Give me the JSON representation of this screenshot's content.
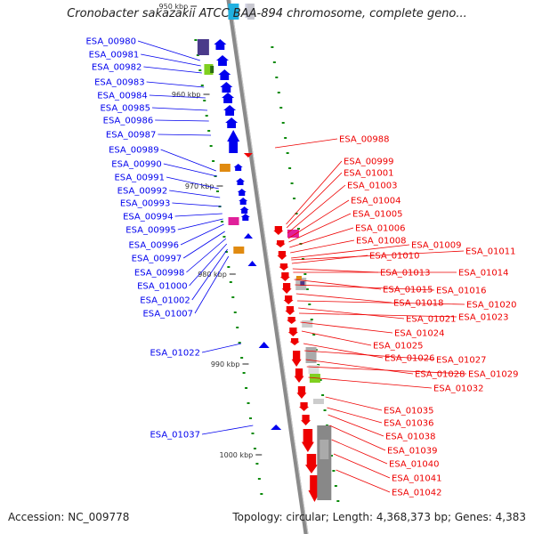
{
  "title": "Cronobacter sakazakii ATCC BAA-894 chromosome, complete geno...",
  "accession": "Accession: NC_009778",
  "summary": "Topology: circular; Length: 4,368,373 bp; Genes: 4,383",
  "colors": {
    "forward": "#0000ee",
    "reverse": "#ee0000",
    "backbone": "#8a8a8a",
    "tick": "#0a8a0a",
    "other_gray": "#777777",
    "magenta": "#e0209a",
    "orange": "#e08a10",
    "lime": "#80d020",
    "purple": "#4a3a8a",
    "cyan": "#20b0e0"
  },
  "kbp_ticks": [
    "950 kbp",
    "960 kbp",
    "970 kbp",
    "980 kbp",
    "990 kbp",
    "1000 kbp"
  ],
  "forward_labels": [
    "ESA_00980",
    "ESA_00981",
    "ESA_00982",
    "ESA_00983",
    "ESA_00984",
    "ESA_00985",
    "ESA_00986",
    "ESA_00987",
    "ESA_00989",
    "ESA_00990",
    "ESA_00991",
    "ESA_00992",
    "ESA_00993",
    "ESA_00994",
    "ESA_00995",
    "ESA_00996",
    "ESA_00997",
    "ESA_00998",
    "ESA_01000",
    "ESA_01002",
    "ESA_01007",
    "ESA_01022",
    "ESA_01037"
  ],
  "reverse_labels": [
    "ESA_00988",
    "ESA_00999",
    "ESA_01001",
    "ESA_01003",
    "ESA_01004",
    "ESA_01005",
    "ESA_01006",
    "ESA_01008",
    "ESA_01009",
    "ESA_01011",
    "ESA_01010",
    "ESA_01013",
    "ESA_01014",
    "ESA_01015",
    "ESA_01016",
    "ESA_01018",
    "ESA_01020",
    "ESA_01021",
    "ESA_01023",
    "ESA_01024",
    "ESA_01025",
    "ESA_01026",
    "ESA_01027",
    "ESA_01028",
    "ESA_01029",
    "ESA_01032",
    "ESA_01035",
    "ESA_01036",
    "ESA_01038",
    "ESA_01039",
    "ESA_01040",
    "ESA_01041",
    "ESA_01042"
  ]
}
